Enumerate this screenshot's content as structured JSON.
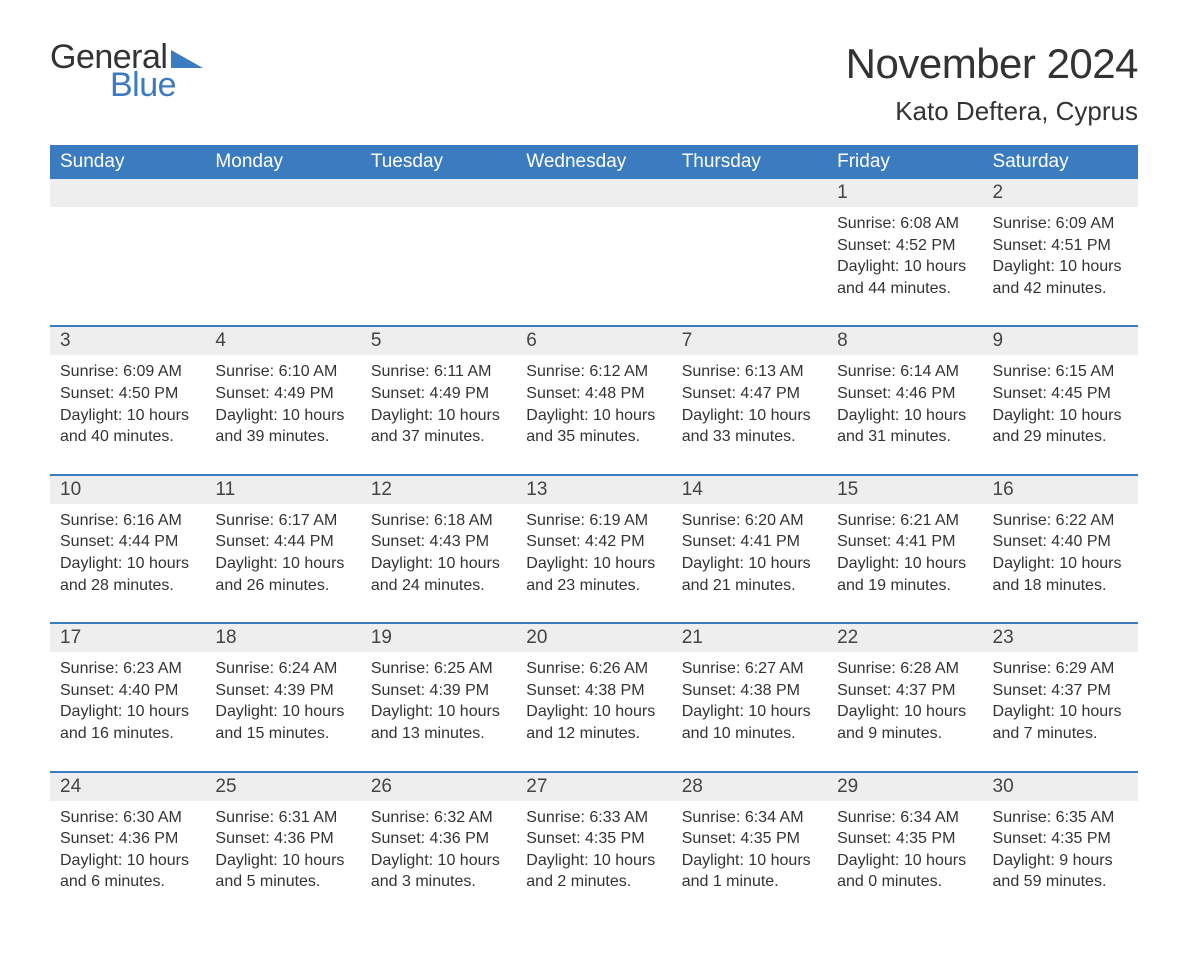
{
  "logo": {
    "word1": "General",
    "word2": "Blue",
    "color_general": "#333333",
    "color_blue": "#3b7bbf",
    "icon_color": "#3b7bbf"
  },
  "title": {
    "month": "November 2024",
    "location": "Kato Deftera, Cyprus",
    "month_fontsize": 42,
    "location_fontsize": 26,
    "color": "#333333"
  },
  "colors": {
    "header_bg": "#3b7bbf",
    "header_fg": "#ffffff",
    "row_border": "#3b7bbf",
    "daynum_bg": "#eeeeee",
    "text": "#333333",
    "background": "#ffffff"
  },
  "weekdays": [
    "Sunday",
    "Monday",
    "Tuesday",
    "Wednesday",
    "Thursday",
    "Friday",
    "Saturday"
  ],
  "leading_blanks": 5,
  "days": [
    {
      "n": 1,
      "sunrise": "6:08 AM",
      "sunset": "4:52 PM",
      "daylight": "10 hours and 44 minutes."
    },
    {
      "n": 2,
      "sunrise": "6:09 AM",
      "sunset": "4:51 PM",
      "daylight": "10 hours and 42 minutes."
    },
    {
      "n": 3,
      "sunrise": "6:09 AM",
      "sunset": "4:50 PM",
      "daylight": "10 hours and 40 minutes."
    },
    {
      "n": 4,
      "sunrise": "6:10 AM",
      "sunset": "4:49 PM",
      "daylight": "10 hours and 39 minutes."
    },
    {
      "n": 5,
      "sunrise": "6:11 AM",
      "sunset": "4:49 PM",
      "daylight": "10 hours and 37 minutes."
    },
    {
      "n": 6,
      "sunrise": "6:12 AM",
      "sunset": "4:48 PM",
      "daylight": "10 hours and 35 minutes."
    },
    {
      "n": 7,
      "sunrise": "6:13 AM",
      "sunset": "4:47 PM",
      "daylight": "10 hours and 33 minutes."
    },
    {
      "n": 8,
      "sunrise": "6:14 AM",
      "sunset": "4:46 PM",
      "daylight": "10 hours and 31 minutes."
    },
    {
      "n": 9,
      "sunrise": "6:15 AM",
      "sunset": "4:45 PM",
      "daylight": "10 hours and 29 minutes."
    },
    {
      "n": 10,
      "sunrise": "6:16 AM",
      "sunset": "4:44 PM",
      "daylight": "10 hours and 28 minutes."
    },
    {
      "n": 11,
      "sunrise": "6:17 AM",
      "sunset": "4:44 PM",
      "daylight": "10 hours and 26 minutes."
    },
    {
      "n": 12,
      "sunrise": "6:18 AM",
      "sunset": "4:43 PM",
      "daylight": "10 hours and 24 minutes."
    },
    {
      "n": 13,
      "sunrise": "6:19 AM",
      "sunset": "4:42 PM",
      "daylight": "10 hours and 23 minutes."
    },
    {
      "n": 14,
      "sunrise": "6:20 AM",
      "sunset": "4:41 PM",
      "daylight": "10 hours and 21 minutes."
    },
    {
      "n": 15,
      "sunrise": "6:21 AM",
      "sunset": "4:41 PM",
      "daylight": "10 hours and 19 minutes."
    },
    {
      "n": 16,
      "sunrise": "6:22 AM",
      "sunset": "4:40 PM",
      "daylight": "10 hours and 18 minutes."
    },
    {
      "n": 17,
      "sunrise": "6:23 AM",
      "sunset": "4:40 PM",
      "daylight": "10 hours and 16 minutes."
    },
    {
      "n": 18,
      "sunrise": "6:24 AM",
      "sunset": "4:39 PM",
      "daylight": "10 hours and 15 minutes."
    },
    {
      "n": 19,
      "sunrise": "6:25 AM",
      "sunset": "4:39 PM",
      "daylight": "10 hours and 13 minutes."
    },
    {
      "n": 20,
      "sunrise": "6:26 AM",
      "sunset": "4:38 PM",
      "daylight": "10 hours and 12 minutes."
    },
    {
      "n": 21,
      "sunrise": "6:27 AM",
      "sunset": "4:38 PM",
      "daylight": "10 hours and 10 minutes."
    },
    {
      "n": 22,
      "sunrise": "6:28 AM",
      "sunset": "4:37 PM",
      "daylight": "10 hours and 9 minutes."
    },
    {
      "n": 23,
      "sunrise": "6:29 AM",
      "sunset": "4:37 PM",
      "daylight": "10 hours and 7 minutes."
    },
    {
      "n": 24,
      "sunrise": "6:30 AM",
      "sunset": "4:36 PM",
      "daylight": "10 hours and 6 minutes."
    },
    {
      "n": 25,
      "sunrise": "6:31 AM",
      "sunset": "4:36 PM",
      "daylight": "10 hours and 5 minutes."
    },
    {
      "n": 26,
      "sunrise": "6:32 AM",
      "sunset": "4:36 PM",
      "daylight": "10 hours and 3 minutes."
    },
    {
      "n": 27,
      "sunrise": "6:33 AM",
      "sunset": "4:35 PM",
      "daylight": "10 hours and 2 minutes."
    },
    {
      "n": 28,
      "sunrise": "6:34 AM",
      "sunset": "4:35 PM",
      "daylight": "10 hours and 1 minute."
    },
    {
      "n": 29,
      "sunrise": "6:34 AM",
      "sunset": "4:35 PM",
      "daylight": "10 hours and 0 minutes."
    },
    {
      "n": 30,
      "sunrise": "6:35 AM",
      "sunset": "4:35 PM",
      "daylight": "9 hours and 59 minutes."
    }
  ],
  "labels": {
    "sunrise": "Sunrise",
    "sunset": "Sunset",
    "daylight": "Daylight"
  }
}
